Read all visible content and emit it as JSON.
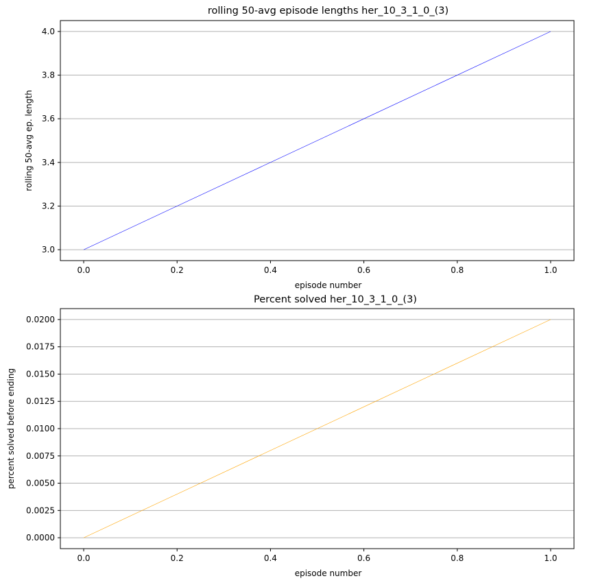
{
  "chart_data": [
    {
      "type": "line",
      "title": "rolling 50-avg episode lengths her_10_3_1_0_(3)",
      "xlabel": "episode number",
      "ylabel": "rolling 50-avg ep. length",
      "xlim": [
        -0.05,
        1.05
      ],
      "ylim": [
        2.95,
        4.05
      ],
      "xticks": [
        0.0,
        0.2,
        0.4,
        0.6,
        0.8,
        1.0
      ],
      "xtick_labels": [
        "0.0",
        "0.2",
        "0.4",
        "0.6",
        "0.8",
        "1.0"
      ],
      "yticks": [
        3.0,
        3.2,
        3.4,
        3.6,
        3.8,
        4.0
      ],
      "ytick_labels": [
        "3.0",
        "3.2",
        "3.4",
        "3.6",
        "3.8",
        "4.0"
      ],
      "grid": "y-major",
      "series": [
        {
          "color": "#0000ff",
          "x": [
            0,
            1
          ],
          "y": [
            3,
            4
          ]
        }
      ]
    },
    {
      "type": "line",
      "title": "Percent solved her_10_3_1_0_(3)",
      "xlabel": "episode number",
      "ylabel": "percent solved before ending",
      "xlim": [
        -0.05,
        1.05
      ],
      "ylim": [
        -0.001,
        0.021
      ],
      "xticks": [
        0.0,
        0.2,
        0.4,
        0.6,
        0.8,
        1.0
      ],
      "xtick_labels": [
        "0.0",
        "0.2",
        "0.4",
        "0.6",
        "0.8",
        "1.0"
      ],
      "yticks": [
        0.0,
        0.0025,
        0.005,
        0.0075,
        0.01,
        0.0125,
        0.015,
        0.0175,
        0.02
      ],
      "ytick_labels": [
        "0.0000",
        "0.0025",
        "0.0050",
        "0.0075",
        "0.0100",
        "0.0125",
        "0.0150",
        "0.0175",
        "0.0200"
      ],
      "grid": "y-major",
      "series": [
        {
          "color": "#ffa500",
          "x": [
            0,
            1
          ],
          "y": [
            0,
            0.02
          ]
        }
      ]
    }
  ]
}
